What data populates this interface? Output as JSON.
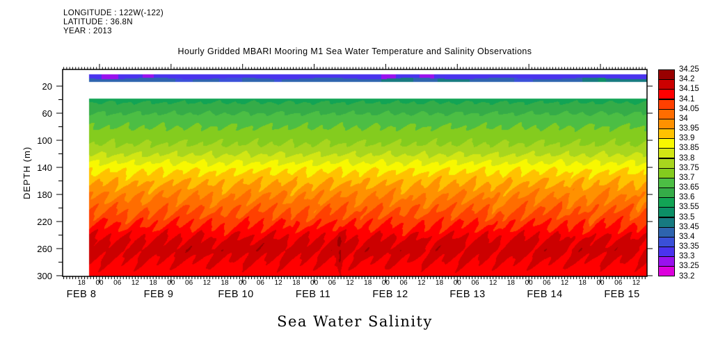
{
  "header": {
    "longitude": "LONGITUDE : 122W(-122)",
    "latitude": "LATITUDE : 36.8N",
    "year": "YEAR : 2013"
  },
  "title": "Hourly Gridded MBARI Mooring M1 Sea Water Temperature and Salinity Observations",
  "footer_label": "Sea Water Salinity",
  "chart_data": {
    "type": "heatmap",
    "title": "Hourly Gridded MBARI Mooring M1 Sea Water Temperature and Salinity Observations",
    "variable": "Sea Water Salinity",
    "ylabel": "DEPTH (m)",
    "y_ticks": [
      20,
      60,
      100,
      140,
      180,
      220,
      260,
      300
    ],
    "y_minor_step": 20,
    "ylim": [
      0,
      300
    ],
    "x_day_labels": [
      "FEB 8",
      "FEB 9",
      "FEB 10",
      "FEB 11",
      "FEB 12",
      "FEB 13",
      "FEB 14",
      "FEB 15"
    ],
    "x_hour_labels": [
      "18",
      "00",
      "06",
      "12",
      "18",
      "00",
      "06",
      "12",
      "18",
      "00",
      "06",
      "12",
      "18",
      "00",
      "06",
      "12",
      "18",
      "00",
      "06",
      "12",
      "18",
      "00",
      "06",
      "12",
      "18",
      "00",
      "06",
      "12",
      "18",
      "00",
      "06",
      "12"
    ],
    "x_hour_step_hours": 6,
    "grid": false,
    "legend_position": "right-colorbar",
    "colorbar": {
      "tick_labels_top_to_bottom": [
        "34.25",
        "34.2",
        "34.15",
        "34.1",
        "34.05",
        "34",
        "33.95",
        "33.9",
        "33.85",
        "33.8",
        "33.75",
        "33.7",
        "33.65",
        "33.6",
        "33.55",
        "33.5",
        "33.45",
        "33.4",
        "33.35",
        "33.3",
        "33.25",
        "33.2"
      ],
      "levels_low_to_high": [
        33.2,
        33.25,
        33.3,
        33.35,
        33.4,
        33.45,
        33.5,
        33.55,
        33.6,
        33.65,
        33.7,
        33.75,
        33.8,
        33.85,
        33.9,
        33.95,
        34.0,
        34.05,
        34.1,
        34.15,
        34.2,
        34.25
      ],
      "colors_low_to_high": [
        "#DD00DD",
        "#9911EE",
        "#4A33EE",
        "#3A50D8",
        "#2E64AE",
        "#177A80",
        "#0C8F66",
        "#12A455",
        "#35AC48",
        "#4CBE44",
        "#84CC1E",
        "#A8D61E",
        "#D2E614",
        "#F8F800",
        "#FFC200",
        "#FF9100",
        "#FF6D00",
        "#FF4000",
        "#FF0000",
        "#CC0000",
        "#990000"
      ]
    },
    "surface_layer": {
      "depth_range_m": [
        2,
        15
      ],
      "upper_band_salinity_psu": 33.32,
      "lower_band_salinity_psu": 33.42,
      "note_colors": "thin blue stripe (33.3-33.45) with violet and teal-green patches"
    },
    "data_gap_depth_range_m": [
      15,
      38
    ],
    "mean_salinity_depth_profile": {
      "depths_m": [
        38,
        50,
        70,
        90,
        105,
        118,
        130,
        142,
        155,
        170,
        190,
        212,
        232,
        248,
        262,
        278,
        292,
        302
      ],
      "salinity_psu": [
        33.58,
        33.62,
        33.68,
        33.72,
        33.75,
        33.79,
        33.84,
        33.89,
        33.93,
        33.97,
        34.02,
        34.07,
        34.12,
        34.165,
        34.175,
        34.15,
        34.13,
        34.12
      ]
    }
  }
}
